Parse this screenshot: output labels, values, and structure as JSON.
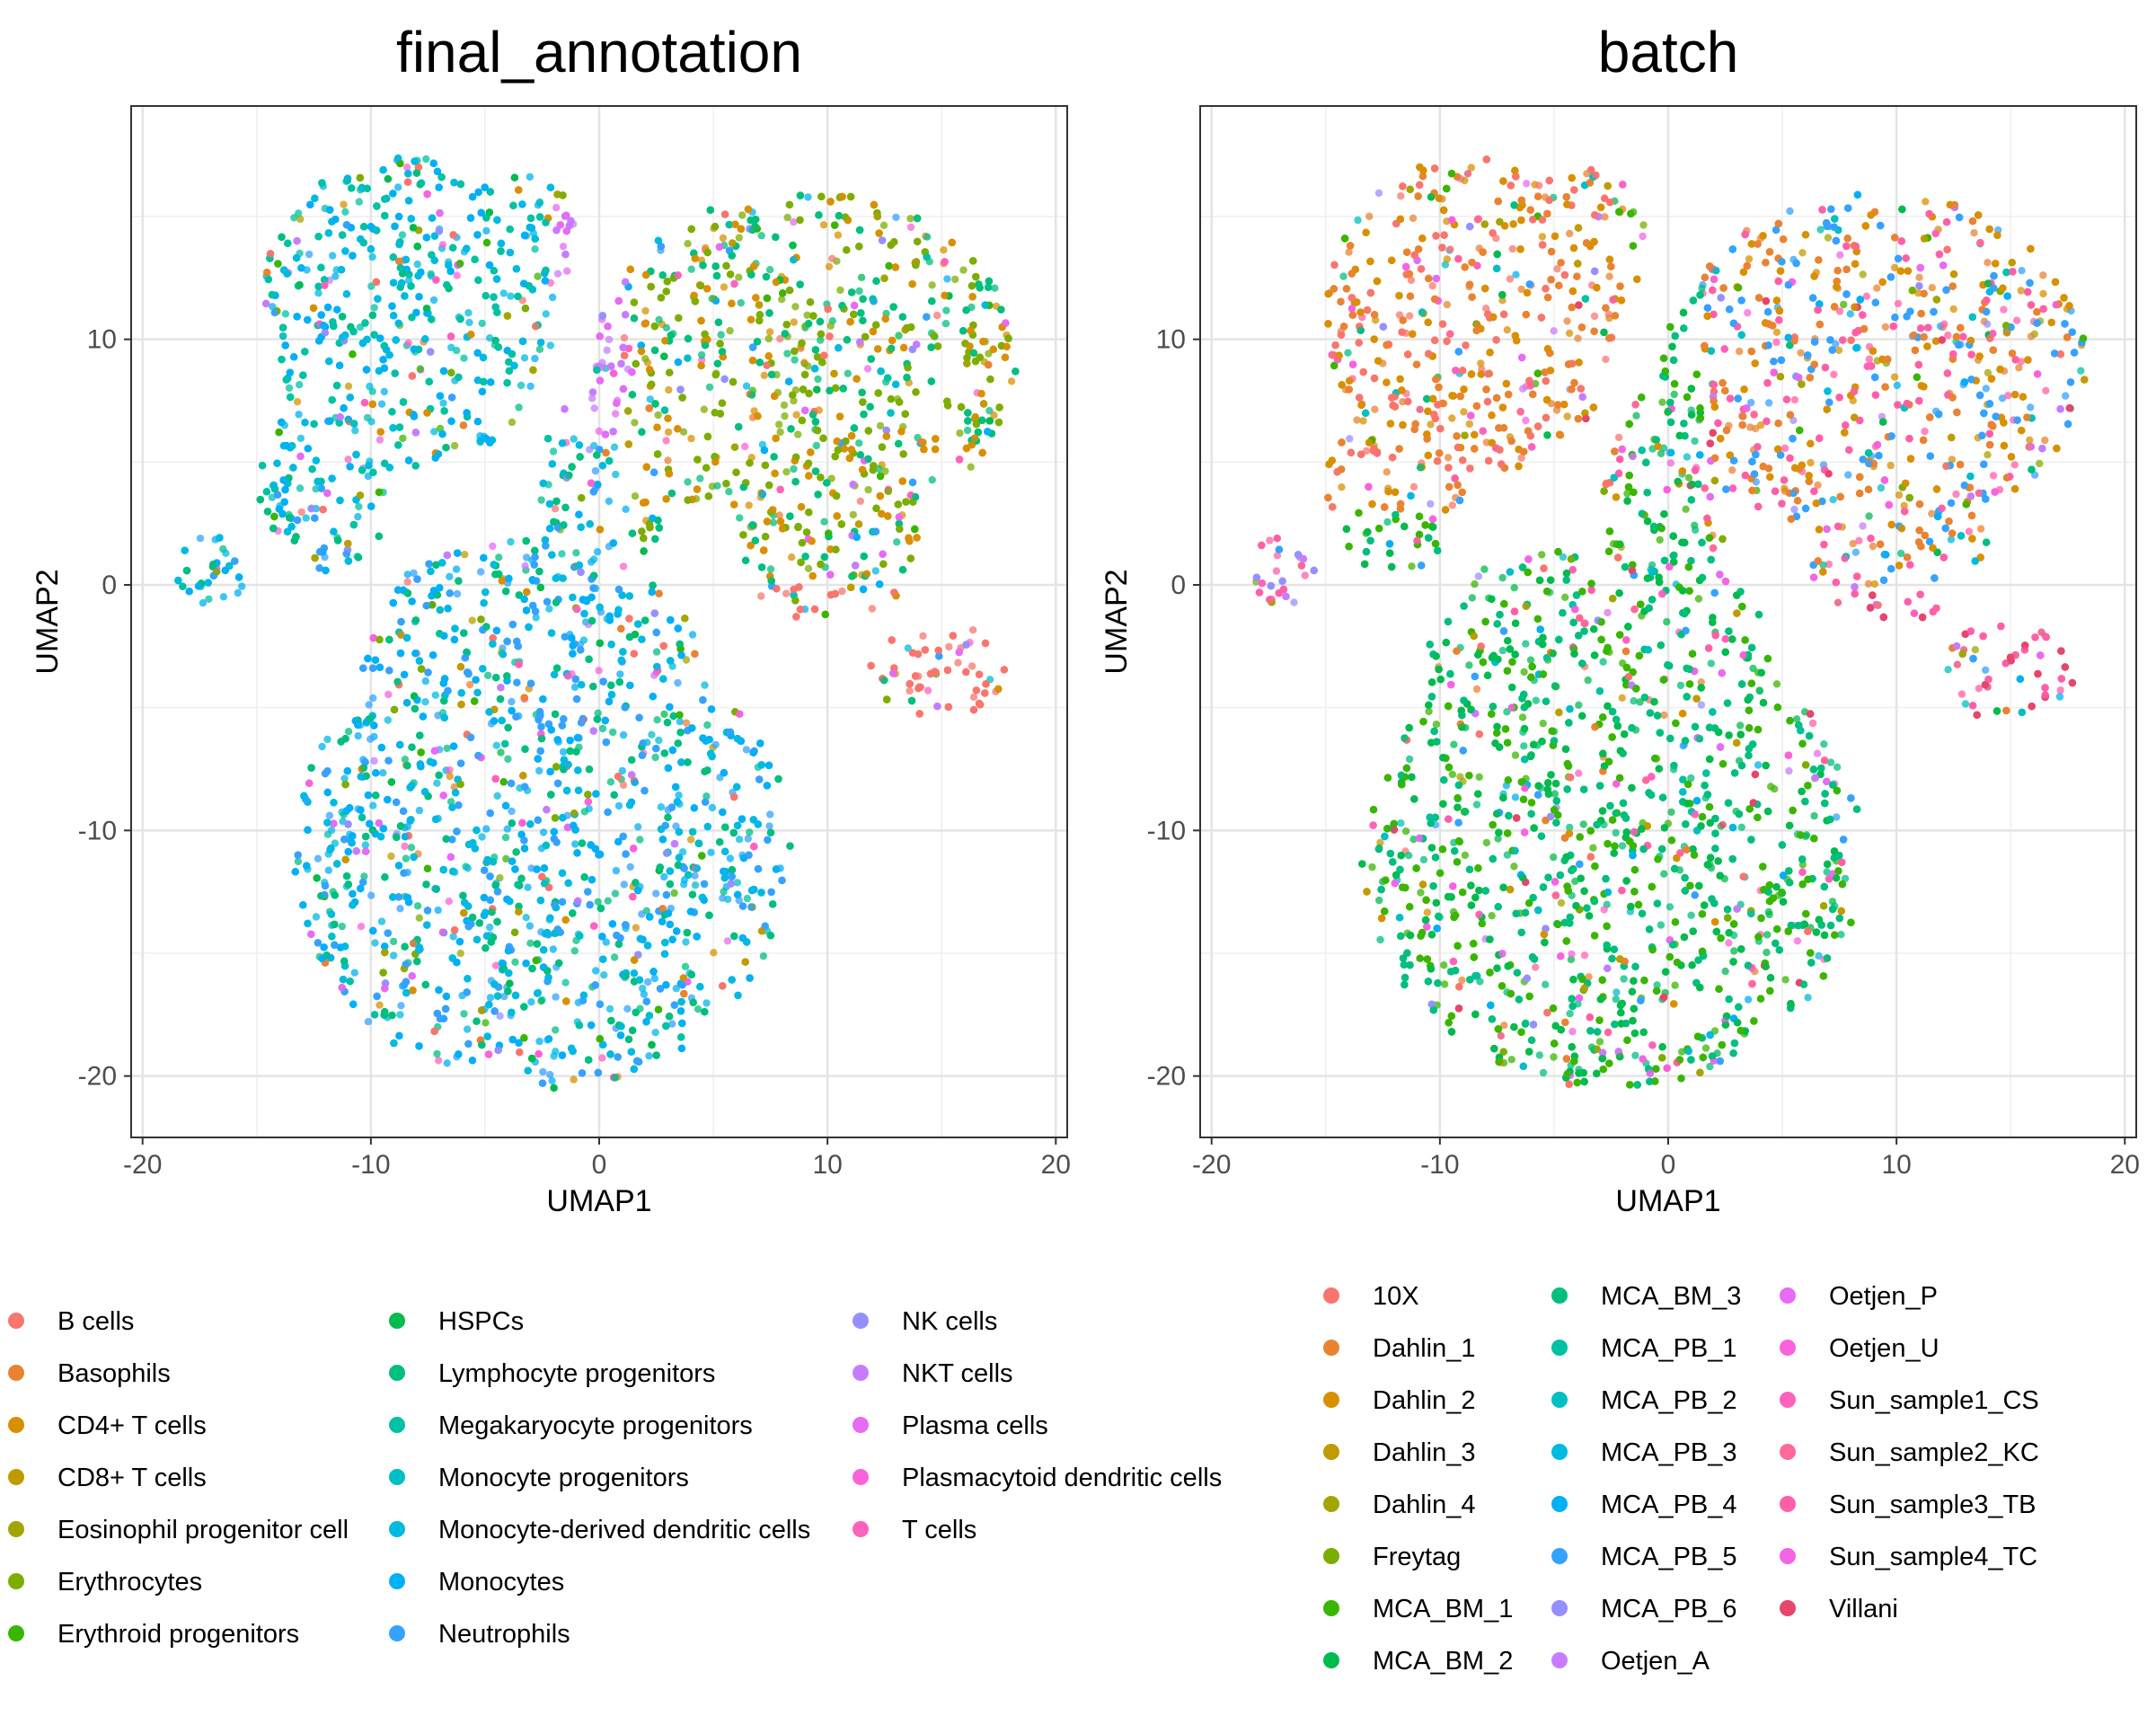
{
  "chart_data": [
    {
      "type": "scatter",
      "title": "final_annotation",
      "xlabel": "UMAP1",
      "ylabel": "UMAP2",
      "xlim": [
        -20.5,
        20.5
      ],
      "ylim": [
        -22.5,
        19.5
      ],
      "xticks": [
        -20,
        -10,
        0,
        10,
        20
      ],
      "yticks": [
        -20,
        -10,
        0,
        10
      ],
      "grid": true,
      "legend_position": "bottom",
      "legend_columns": 3,
      "legend": [
        {
          "label": "B cells",
          "color": "#F8766D"
        },
        {
          "label": "Basophils",
          "color": "#EA8331"
        },
        {
          "label": "CD4+ T cells",
          "color": "#D89000"
        },
        {
          "label": "CD8+ T cells",
          "color": "#C09B00"
        },
        {
          "label": "Eosinophil progenitor cell",
          "color": "#A3A500"
        },
        {
          "label": "Erythrocytes",
          "color": "#7CAE00"
        },
        {
          "label": "Erythroid progenitors",
          "color": "#39B600"
        },
        {
          "label": "HSPCs",
          "color": "#00BB4E"
        },
        {
          "label": "Lymphocyte progenitors",
          "color": "#00BF7D"
        },
        {
          "label": "Megakaryocyte progenitors",
          "color": "#00C1A3"
        },
        {
          "label": "Monocyte progenitors",
          "color": "#00BFC4"
        },
        {
          "label": "Monocyte-derived dendritic cells",
          "color": "#00BAE0"
        },
        {
          "label": "Monocytes",
          "color": "#00B0F6"
        },
        {
          "label": "Neutrophils",
          "color": "#35A2FF"
        },
        {
          "label": "NK cells",
          "color": "#9590FF"
        },
        {
          "label": "NKT cells",
          "color": "#C77CFF"
        },
        {
          "label": "Plasma cells",
          "color": "#E76BF3"
        },
        {
          "label": "Plasmacytoid dendritic cells",
          "color": "#FA62DB"
        },
        {
          "label": "T cells",
          "color": "#FF62BC"
        }
      ]
    },
    {
      "type": "scatter",
      "title": "batch",
      "xlabel": "UMAP1",
      "ylabel": "UMAP2",
      "xlim": [
        -20.5,
        20.5
      ],
      "ylim": [
        -22.5,
        19.5
      ],
      "xticks": [
        -20,
        -10,
        0,
        10,
        20
      ],
      "yticks": [
        -20,
        -10,
        0,
        10
      ],
      "grid": true,
      "legend_position": "bottom",
      "legend_columns": 3,
      "legend": [
        {
          "label": "10X",
          "color": "#F8766D"
        },
        {
          "label": "Dahlin_1",
          "color": "#EA8331"
        },
        {
          "label": "Dahlin_2",
          "color": "#D89000"
        },
        {
          "label": "Dahlin_3",
          "color": "#C09B00"
        },
        {
          "label": "Dahlin_4",
          "color": "#A3A500"
        },
        {
          "label": "Freytag",
          "color": "#7CAE00"
        },
        {
          "label": "MCA_BM_1",
          "color": "#39B600"
        },
        {
          "label": "MCA_BM_2",
          "color": "#00BB4E"
        },
        {
          "label": "MCA_BM_3",
          "color": "#00BF7D"
        },
        {
          "label": "MCA_PB_1",
          "color": "#00C1A3"
        },
        {
          "label": "MCA_PB_2",
          "color": "#00BFC4"
        },
        {
          "label": "MCA_PB_3",
          "color": "#00BAE0"
        },
        {
          "label": "MCA_PB_4",
          "color": "#00B0F6"
        },
        {
          "label": "MCA_PB_5",
          "color": "#35A2FF"
        },
        {
          "label": "MCA_PB_6",
          "color": "#9590FF"
        },
        {
          "label": "Oetjen_A",
          "color": "#C77CFF"
        },
        {
          "label": "Oetjen_P",
          "color": "#E76BF3"
        },
        {
          "label": "Oetjen_U",
          "color": "#FA62DB"
        },
        {
          "label": "Sun_sample1_CS",
          "color": "#FF62BC"
        },
        {
          "label": "Sun_sample2_KC",
          "color": "#FF6A98"
        },
        {
          "label": "Sun_sample3_TB",
          "color": "#FF5FA8"
        },
        {
          "label": "Sun_sample4_TC",
          "color": "#F564E3"
        },
        {
          "label": "Villani",
          "color": "#E7466B"
        }
      ]
    }
  ]
}
